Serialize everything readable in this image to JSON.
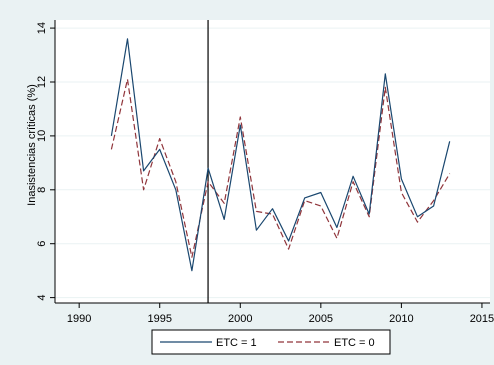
{
  "chart_data": {
    "type": "line",
    "ylabel": "Inasistencias críticas (%)",
    "xlabel": "",
    "xlim": [
      1988.5,
      2015.5
    ],
    "ylim": [
      3.8,
      14.3
    ],
    "xticks": [
      1990,
      1995,
      2000,
      2005,
      2010,
      2015
    ],
    "yticks": [
      4,
      6,
      8,
      10,
      12,
      14
    ],
    "xtick_labels": [
      "1990",
      "1995",
      "2000",
      "2005",
      "2010",
      "2015"
    ],
    "ytick_labels": [
      "4",
      "6",
      "8",
      "10",
      "12",
      "14"
    ],
    "grid": "horizontal",
    "legend_position": "bottom",
    "vertical_line_x": 1998,
    "x": [
      1992,
      1993,
      1994,
      1995,
      1996,
      1997,
      1998,
      1999,
      2000,
      2001,
      2002,
      2003,
      2004,
      2005,
      2006,
      2007,
      2008,
      2009,
      2010,
      2011,
      2012,
      2013
    ],
    "series": [
      {
        "name": "ETC = 1",
        "color": "#1a476f",
        "dash": "solid",
        "values": [
          10.0,
          13.6,
          8.7,
          9.5,
          8.0,
          5.0,
          8.8,
          6.9,
          10.4,
          6.5,
          7.3,
          6.1,
          7.7,
          7.9,
          6.6,
          8.5,
          7.1,
          12.3,
          8.4,
          7.0,
          7.4,
          9.8
        ]
      },
      {
        "name": "ETC = 0",
        "color": "#90353b",
        "dash": "dashed",
        "values": [
          9.5,
          12.1,
          8.0,
          9.9,
          8.3,
          5.5,
          8.3,
          7.5,
          10.7,
          7.2,
          7.1,
          5.8,
          7.6,
          7.4,
          6.2,
          8.3,
          7.0,
          11.8,
          7.9,
          6.8,
          7.6,
          8.6
        ]
      }
    ]
  }
}
